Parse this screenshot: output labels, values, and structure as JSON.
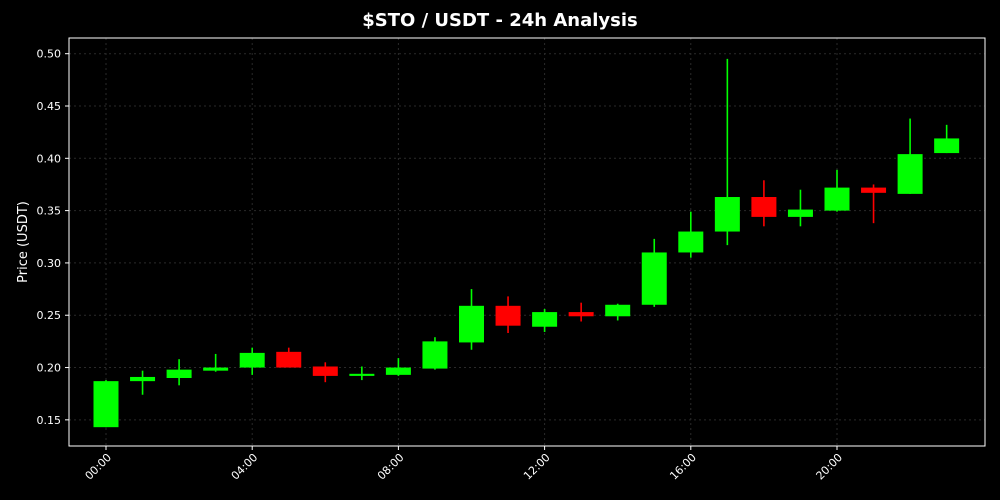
{
  "chart_data": {
    "type": "candlestick",
    "title": "$STO / USDT - 24h Analysis",
    "xlabel": "",
    "ylabel": "Price (USDT)",
    "ylim": [
      0.125,
      0.515
    ],
    "y_ticks": [
      "0.15",
      "0.20",
      "0.25",
      "0.30",
      "0.35",
      "0.40",
      "0.45",
      "0.50"
    ],
    "x_ticks": [
      "00:00",
      "04:00",
      "08:00",
      "12:00",
      "16:00",
      "20:00"
    ],
    "grid": true,
    "colors": {
      "background": "#000000",
      "up": "#00ff00",
      "down": "#ff0000",
      "grid": "#2a2a2a",
      "axis": "#ffffff"
    },
    "series": [
      {
        "x": "00:00",
        "open": 0.143,
        "high": 0.188,
        "low": 0.143,
        "close": 0.187
      },
      {
        "x": "01:00",
        "open": 0.187,
        "high": 0.197,
        "low": 0.174,
        "close": 0.191
      },
      {
        "x": "02:00",
        "open": 0.19,
        "high": 0.208,
        "low": 0.183,
        "close": 0.198
      },
      {
        "x": "03:00",
        "open": 0.197,
        "high": 0.213,
        "low": 0.196,
        "close": 0.2
      },
      {
        "x": "04:00",
        "open": 0.2,
        "high": 0.219,
        "low": 0.193,
        "close": 0.214
      },
      {
        "x": "05:00",
        "open": 0.215,
        "high": 0.219,
        "low": 0.2,
        "close": 0.2
      },
      {
        "x": "06:00",
        "open": 0.201,
        "high": 0.205,
        "low": 0.186,
        "close": 0.192
      },
      {
        "x": "07:00",
        "open": 0.192,
        "high": 0.201,
        "low": 0.188,
        "close": 0.194
      },
      {
        "x": "08:00",
        "open": 0.193,
        "high": 0.209,
        "low": 0.192,
        "close": 0.2
      },
      {
        "x": "09:00",
        "open": 0.199,
        "high": 0.229,
        "low": 0.198,
        "close": 0.225
      },
      {
        "x": "10:00",
        "open": 0.224,
        "high": 0.275,
        "low": 0.217,
        "close": 0.259
      },
      {
        "x": "11:00",
        "open": 0.259,
        "high": 0.268,
        "low": 0.233,
        "close": 0.24
      },
      {
        "x": "12:00",
        "open": 0.239,
        "high": 0.256,
        "low": 0.234,
        "close": 0.253
      },
      {
        "x": "13:00",
        "open": 0.253,
        "high": 0.262,
        "low": 0.244,
        "close": 0.249
      },
      {
        "x": "14:00",
        "open": 0.249,
        "high": 0.261,
        "low": 0.245,
        "close": 0.26
      },
      {
        "x": "15:00",
        "open": 0.26,
        "high": 0.323,
        "low": 0.258,
        "close": 0.31
      },
      {
        "x": "16:00",
        "open": 0.31,
        "high": 0.349,
        "low": 0.305,
        "close": 0.33
      },
      {
        "x": "17:00",
        "open": 0.33,
        "high": 0.495,
        "low": 0.317,
        "close": 0.363
      },
      {
        "x": "18:00",
        "open": 0.363,
        "high": 0.379,
        "low": 0.335,
        "close": 0.344
      },
      {
        "x": "19:00",
        "open": 0.344,
        "high": 0.37,
        "low": 0.335,
        "close": 0.351
      },
      {
        "x": "20:00",
        "open": 0.35,
        "high": 0.389,
        "low": 0.349,
        "close": 0.372
      },
      {
        "x": "21:00",
        "open": 0.372,
        "high": 0.375,
        "low": 0.338,
        "close": 0.367
      },
      {
        "x": "22:00",
        "open": 0.366,
        "high": 0.438,
        "low": 0.366,
        "close": 0.404
      },
      {
        "x": "23:00",
        "open": 0.405,
        "high": 0.432,
        "low": 0.405,
        "close": 0.419
      }
    ]
  }
}
